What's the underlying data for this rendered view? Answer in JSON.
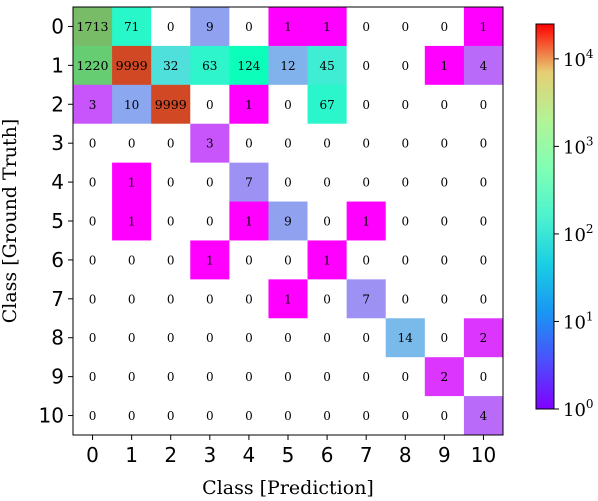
{
  "chart_data": {
    "type": "heatmap",
    "xlabel": "Class [Prediction]",
    "ylabel": "Class [Ground Truth]",
    "x_categories": [
      "0",
      "1",
      "2",
      "3",
      "4",
      "5",
      "6",
      "7",
      "8",
      "9",
      "10"
    ],
    "y_categories": [
      "0",
      "1",
      "2",
      "3",
      "4",
      "5",
      "6",
      "7",
      "8",
      "9",
      "10"
    ],
    "values": [
      [
        1713,
        71,
        0,
        9,
        0,
        1,
        1,
        0,
        0,
        0,
        1
      ],
      [
        1220,
        9999,
        32,
        63,
        124,
        12,
        45,
        0,
        0,
        1,
        4
      ],
      [
        3,
        10,
        9999,
        0,
        1,
        0,
        67,
        0,
        0,
        0,
        0
      ],
      [
        0,
        0,
        0,
        3,
        0,
        0,
        0,
        0,
        0,
        0,
        0
      ],
      [
        0,
        1,
        0,
        0,
        7,
        0,
        0,
        0,
        0,
        0,
        0
      ],
      [
        0,
        1,
        0,
        0,
        1,
        9,
        0,
        1,
        0,
        0,
        0
      ],
      [
        0,
        0,
        0,
        1,
        0,
        0,
        1,
        0,
        0,
        0,
        0
      ],
      [
        0,
        0,
        0,
        0,
        0,
        1,
        0,
        7,
        0,
        0,
        0
      ],
      [
        0,
        0,
        0,
        0,
        0,
        0,
        0,
        0,
        14,
        0,
        2
      ],
      [
        0,
        0,
        0,
        0,
        0,
        0,
        0,
        0,
        0,
        2,
        0
      ],
      [
        0,
        0,
        0,
        0,
        0,
        0,
        0,
        0,
        0,
        0,
        4
      ]
    ],
    "colorbar": {
      "scale": "log",
      "colormap": "rainbow",
      "range": [
        1,
        25000
      ],
      "tick_values": [
        1,
        10,
        100,
        1000,
        10000
      ],
      "tick_bases": [
        "10",
        "10",
        "10",
        "10",
        "10"
      ],
      "tick_exponents": [
        "0",
        "1",
        "2",
        "3",
        "4"
      ]
    },
    "zero_cell_color": "#ffffff",
    "grid": false
  }
}
